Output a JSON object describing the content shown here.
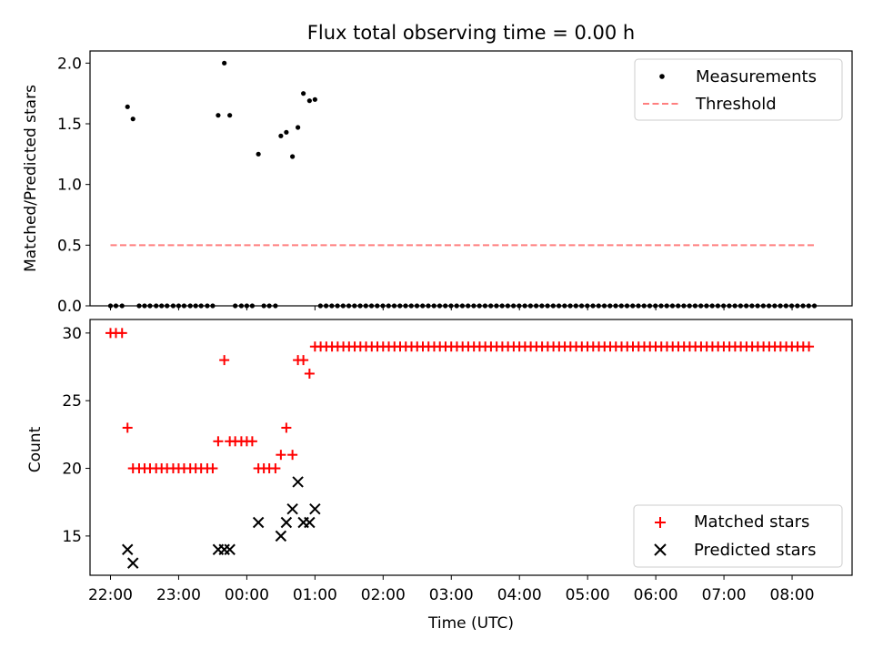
{
  "chart_data": [
    {
      "type": "scatter",
      "title": "Flux total observing time = 0.00 h",
      "xlabel": "",
      "ylabel": "Matched/Predicted stars",
      "ylim": [
        0,
        2.1
      ],
      "yticks": [
        0.0,
        0.5,
        1.0,
        1.5,
        2.0
      ],
      "ytick_labels": [
        "0.0",
        "0.5",
        "1.0",
        "1.5",
        "2.0"
      ],
      "xlim_hours": [
        -2.3,
        8.88
      ],
      "xticks_hours": [
        -2,
        -1,
        0,
        1,
        2,
        3,
        4,
        5,
        6,
        7,
        8
      ],
      "legend_position": "top-right",
      "legend": [
        {
          "label": "Measurements",
          "marker": "dot",
          "color": "#000000"
        },
        {
          "label": "Threshold",
          "marker": "dashed-line",
          "color": "#ff7f7f"
        }
      ],
      "series": [
        {
          "name": "Measurements",
          "color": "#000000",
          "points": [
            {
              "x": -2.0,
              "y": 0
            },
            {
              "x": -1.92,
              "y": 0
            },
            {
              "x": -1.83,
              "y": 0
            },
            {
              "x": -1.75,
              "y": 1.64
            },
            {
              "x": -1.67,
              "y": 1.54
            },
            {
              "x": -1.58,
              "y": 0
            },
            {
              "x": -1.5,
              "y": 0
            },
            {
              "x": -1.42,
              "y": 0
            },
            {
              "x": -1.33,
              "y": 0
            },
            {
              "x": -1.25,
              "y": 0
            },
            {
              "x": -1.17,
              "y": 0
            },
            {
              "x": -1.08,
              "y": 0
            },
            {
              "x": -1.0,
              "y": 0
            },
            {
              "x": -0.92,
              "y": 0
            },
            {
              "x": -0.83,
              "y": 0
            },
            {
              "x": -0.75,
              "y": 0
            },
            {
              "x": -0.67,
              "y": 0
            },
            {
              "x": -0.58,
              "y": 0
            },
            {
              "x": -0.5,
              "y": 0
            },
            {
              "x": -0.42,
              "y": 1.57
            },
            {
              "x": -0.33,
              "y": 2.0
            },
            {
              "x": -0.25,
              "y": 1.57
            },
            {
              "x": -0.17,
              "y": 0
            },
            {
              "x": -0.08,
              "y": 0
            },
            {
              "x": 0.0,
              "y": 0
            },
            {
              "x": 0.08,
              "y": 0
            },
            {
              "x": 0.17,
              "y": 1.25
            },
            {
              "x": 0.25,
              "y": 0
            },
            {
              "x": 0.33,
              "y": 0
            },
            {
              "x": 0.42,
              "y": 0
            },
            {
              "x": 0.5,
              "y": 1.4
            },
            {
              "x": 0.58,
              "y": 1.43
            },
            {
              "x": 0.67,
              "y": 1.23
            },
            {
              "x": 0.75,
              "y": 1.47
            },
            {
              "x": 0.83,
              "y": 1.75
            },
            {
              "x": 0.92,
              "y": 1.69
            },
            {
              "x": 1.0,
              "y": 1.7
            }
          ],
          "zero_run": {
            "start": 1.08,
            "end": 8.33,
            "step": 0.0833,
            "y": 0
          }
        },
        {
          "name": "Threshold",
          "color": "#ff7f7f",
          "style": "dashed",
          "x": [
            -2.0,
            8.33
          ],
          "y": [
            0.5,
            0.5
          ]
        }
      ]
    },
    {
      "type": "scatter",
      "title": "",
      "xlabel": "Time (UTC)",
      "ylabel": "Count",
      "ylim": [
        12.1,
        31.0
      ],
      "yticks": [
        15,
        20,
        25,
        30
      ],
      "ytick_labels": [
        "15",
        "20",
        "25",
        "30"
      ],
      "xlim_hours": [
        -2.3,
        8.88
      ],
      "xticks_hours": [
        -2,
        -1,
        0,
        1,
        2,
        3,
        4,
        5,
        6,
        7,
        8
      ],
      "xtick_labels": [
        "22:00",
        "23:00",
        "00:00",
        "01:00",
        "02:00",
        "03:00",
        "04:00",
        "05:00",
        "06:00",
        "07:00",
        "08:00"
      ],
      "legend_position": "bottom-right",
      "legend": [
        {
          "label": "Matched stars",
          "marker": "plus",
          "color": "#ff0000"
        },
        {
          "label": "Predicted stars",
          "marker": "x",
          "color": "#000000"
        }
      ],
      "series": [
        {
          "name": "Matched stars",
          "marker": "plus",
          "color": "#ff0000",
          "points": [
            {
              "x": -2.0,
              "y": 30
            },
            {
              "x": -1.92,
              "y": 30
            },
            {
              "x": -1.83,
              "y": 30
            },
            {
              "x": -1.75,
              "y": 23
            },
            {
              "x": -1.67,
              "y": 20
            },
            {
              "x": -1.58,
              "y": 20
            },
            {
              "x": -1.5,
              "y": 20
            },
            {
              "x": -1.42,
              "y": 20
            },
            {
              "x": -1.33,
              "y": 20
            },
            {
              "x": -1.25,
              "y": 20
            },
            {
              "x": -1.17,
              "y": 20
            },
            {
              "x": -1.08,
              "y": 20
            },
            {
              "x": -1.0,
              "y": 20
            },
            {
              "x": -0.92,
              "y": 20
            },
            {
              "x": -0.83,
              "y": 20
            },
            {
              "x": -0.75,
              "y": 20
            },
            {
              "x": -0.67,
              "y": 20
            },
            {
              "x": -0.58,
              "y": 20
            },
            {
              "x": -0.5,
              "y": 20
            },
            {
              "x": -0.42,
              "y": 22
            },
            {
              "x": -0.33,
              "y": 28
            },
            {
              "x": -0.25,
              "y": 22
            },
            {
              "x": -0.17,
              "y": 22
            },
            {
              "x": -0.08,
              "y": 22
            },
            {
              "x": 0.0,
              "y": 22
            },
            {
              "x": 0.08,
              "y": 22
            },
            {
              "x": 0.17,
              "y": 20
            },
            {
              "x": 0.25,
              "y": 20
            },
            {
              "x": 0.33,
              "y": 20
            },
            {
              "x": 0.42,
              "y": 20
            },
            {
              "x": 0.5,
              "y": 21
            },
            {
              "x": 0.58,
              "y": 23
            },
            {
              "x": 0.67,
              "y": 21
            },
            {
              "x": 0.75,
              "y": 28
            },
            {
              "x": 0.83,
              "y": 28
            },
            {
              "x": 0.92,
              "y": 27
            }
          ],
          "constant_run": {
            "start": 1.0,
            "end": 8.33,
            "step": 0.0833,
            "y": 29
          }
        },
        {
          "name": "Predicted stars",
          "marker": "x",
          "color": "#000000",
          "points": [
            {
              "x": -1.75,
              "y": 14
            },
            {
              "x": -1.67,
              "y": 13
            },
            {
              "x": -0.42,
              "y": 14
            },
            {
              "x": -0.33,
              "y": 14
            },
            {
              "x": -0.25,
              "y": 14
            },
            {
              "x": 0.17,
              "y": 16
            },
            {
              "x": 0.5,
              "y": 15
            },
            {
              "x": 0.58,
              "y": 16
            },
            {
              "x": 0.67,
              "y": 17
            },
            {
              "x": 0.75,
              "y": 19
            },
            {
              "x": 0.83,
              "y": 16
            },
            {
              "x": 0.92,
              "y": 16
            },
            {
              "x": 1.0,
              "y": 17
            }
          ]
        }
      ]
    }
  ]
}
